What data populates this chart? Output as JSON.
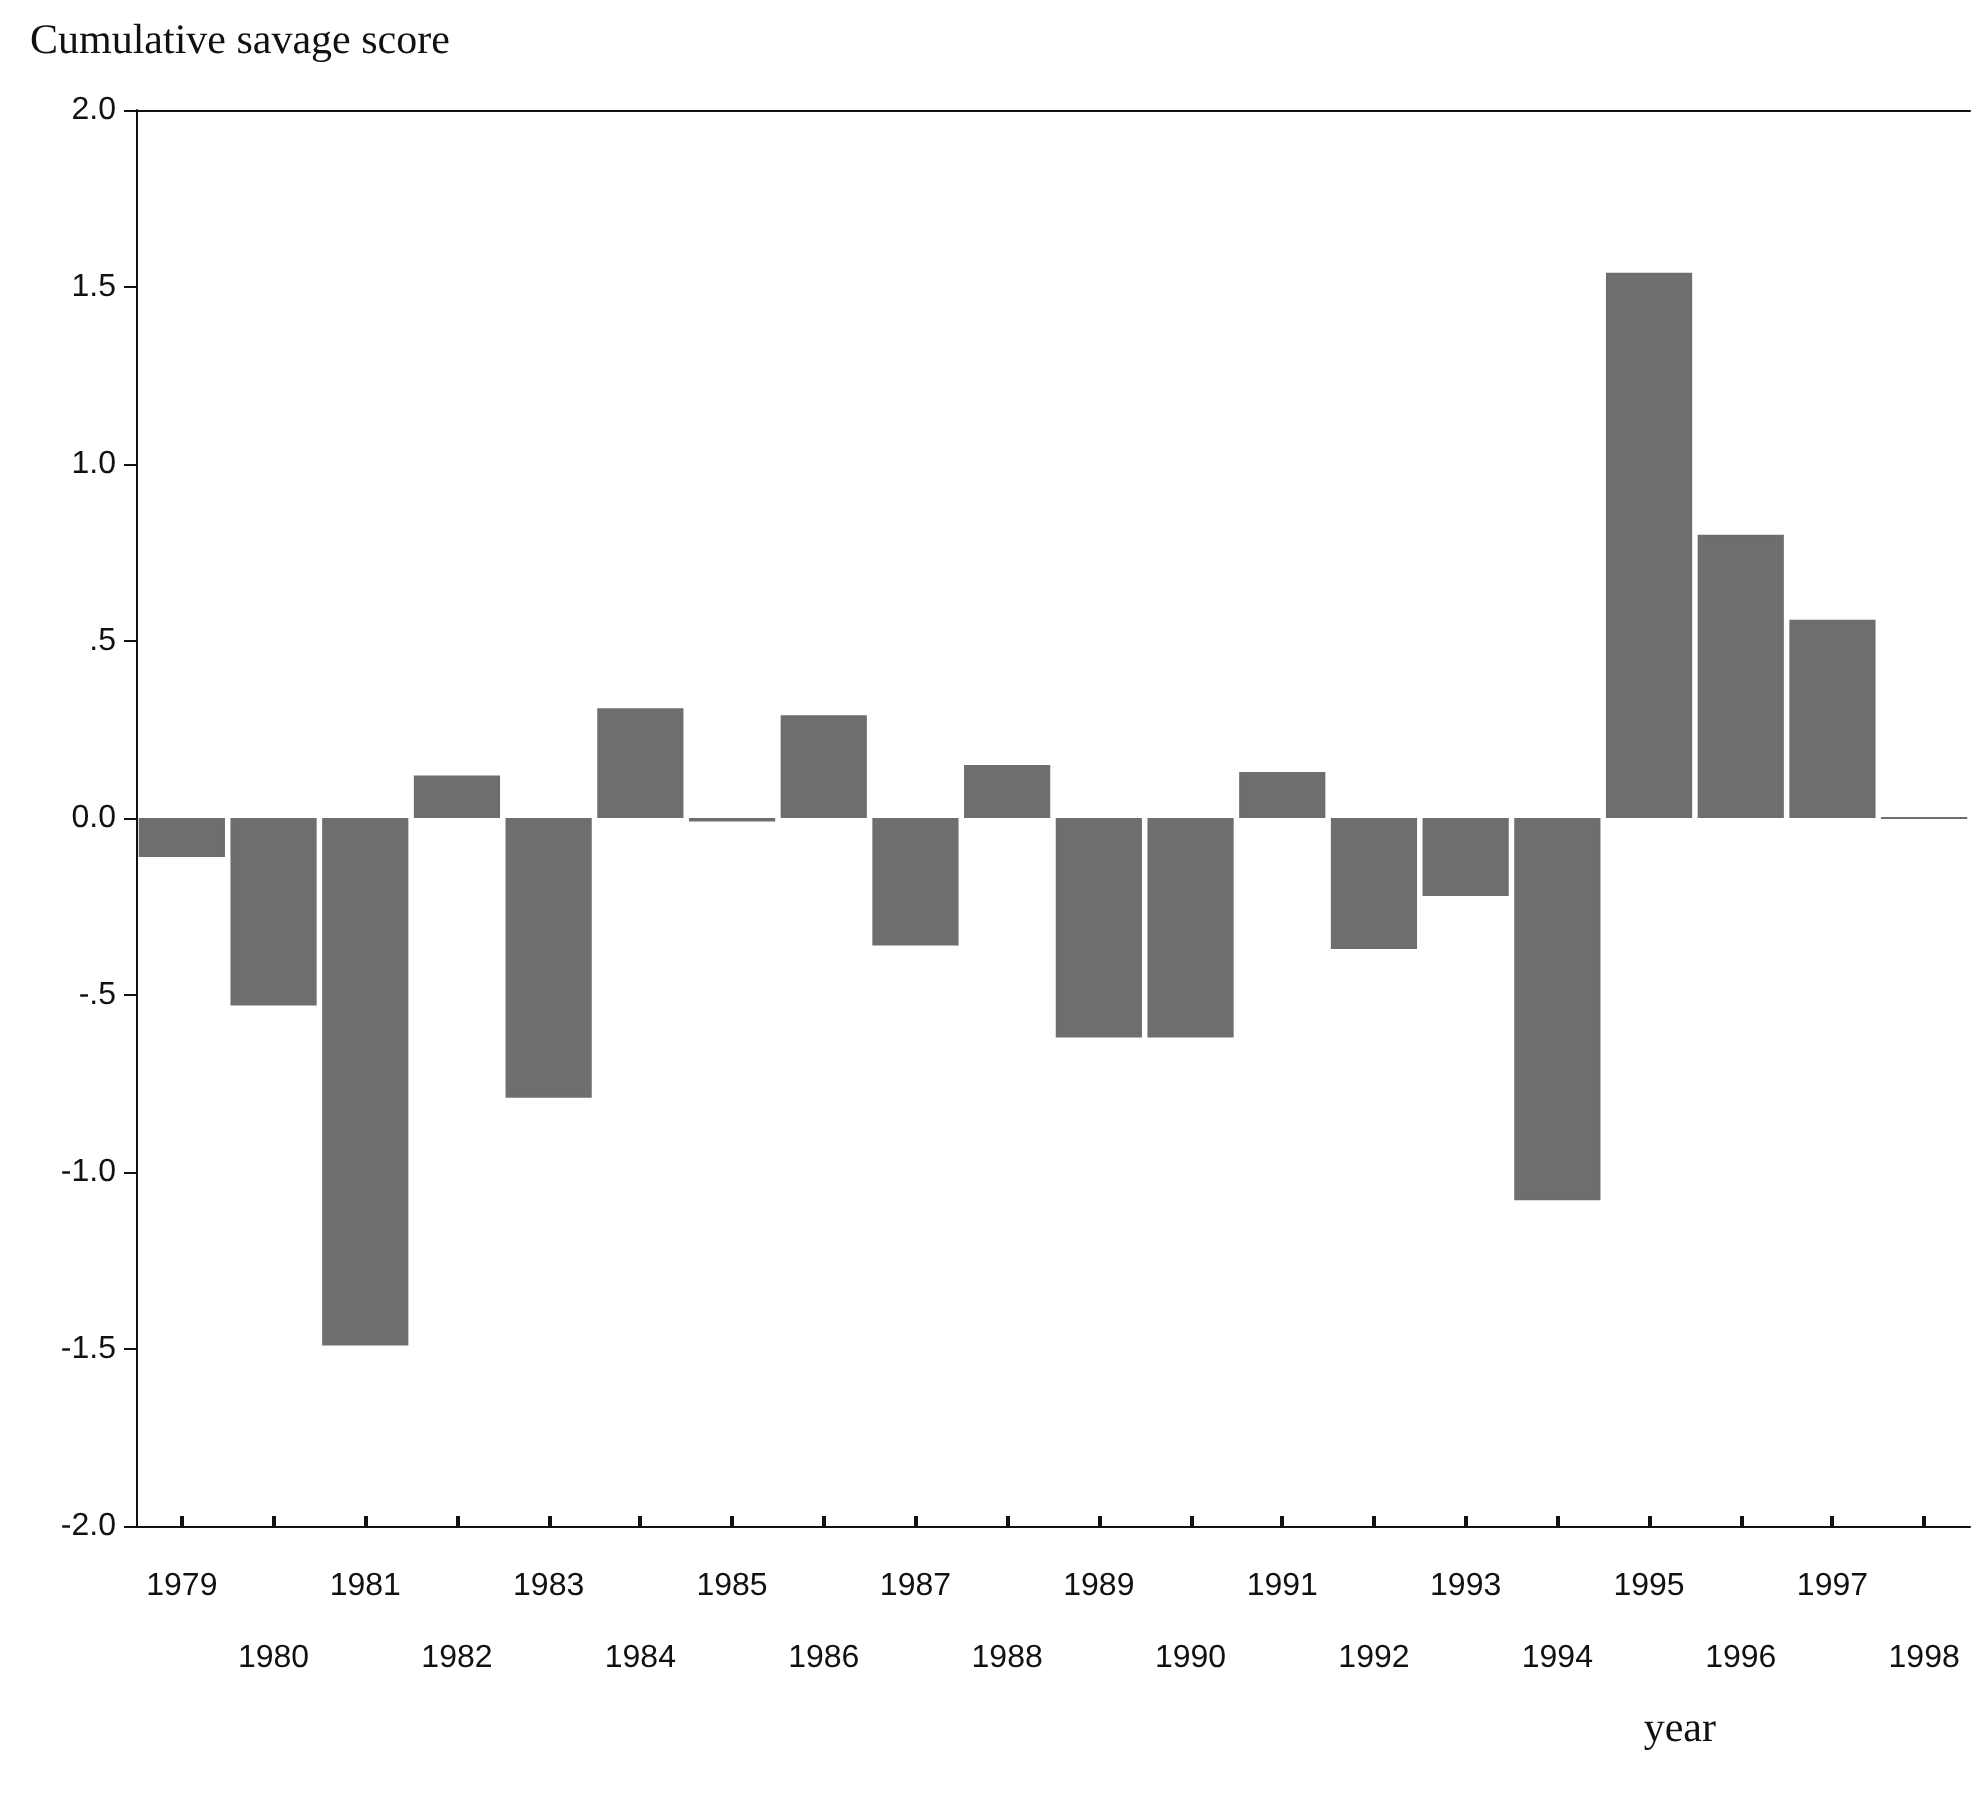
{
  "chart_data": {
    "type": "bar",
    "ylabel": "Cumulative savage score",
    "xlabel": "year",
    "categories": [
      "1979",
      "1980",
      "1981",
      "1982",
      "1983",
      "1984",
      "1985",
      "1986",
      "1987",
      "1988",
      "1989",
      "1990",
      "1991",
      "1992",
      "1993",
      "1994",
      "1995",
      "1996",
      "1997",
      "1998"
    ],
    "values": [
      -0.11,
      -0.53,
      -1.49,
      0.12,
      -0.79,
      0.31,
      -0.01,
      0.29,
      -0.36,
      0.15,
      -0.62,
      -0.62,
      0.13,
      -0.37,
      -0.22,
      -1.08,
      1.54,
      0.8,
      0.56,
      0
    ],
    "color": "#6e6e6e",
    "ylim": [
      -2,
      2
    ],
    "yticks": [
      {
        "value": -2,
        "label": "-2.0"
      },
      {
        "value": -1.5,
        "label": "-1.5"
      },
      {
        "value": -1,
        "label": "-1.0"
      },
      {
        "value": -0.5,
        "label": "-.5"
      },
      {
        "value": 0,
        "label": "0.0"
      },
      {
        "value": 0.5,
        "label": ".5"
      },
      {
        "value": 1,
        "label": "1.0"
      },
      {
        "value": 1.5,
        "label": "1.5"
      },
      {
        "value": 2,
        "label": "2.0"
      }
    ],
    "grid": false
  }
}
